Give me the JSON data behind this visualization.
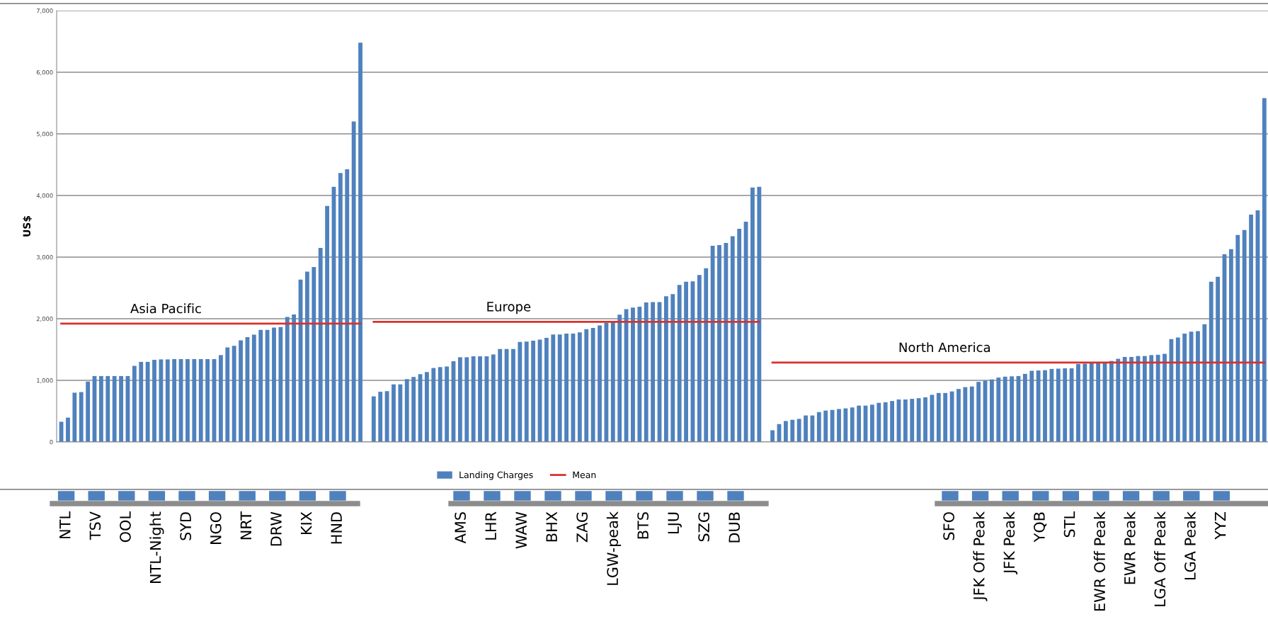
{
  "chart_data": {
    "type": "bar",
    "ylabel": "US$",
    "ylim": [
      0,
      7000
    ],
    "yticks": [
      0,
      {
        "value": 1000,
        "label": "1,000"
      },
      {
        "value": 2000,
        "label": "2,000"
      },
      {
        "value": 3000,
        "label": "3,000"
      },
      {
        "value": 4000,
        "label": "4,000"
      },
      {
        "value": 5000,
        "label": "5,000"
      },
      {
        "value": 6000,
        "label": "6,000"
      },
      {
        "value": 7000,
        "label": "7,000"
      }
    ],
    "grid": "y",
    "legend": "bottom",
    "categories": [
      null,
      null,
      null,
      null,
      null,
      null,
      null,
      null,
      null,
      null,
      null,
      null,
      null,
      null,
      null,
      null,
      null,
      null,
      null,
      null,
      null,
      null,
      null,
      null,
      null,
      null,
      null,
      null,
      null,
      null,
      null,
      null,
      null,
      null,
      null,
      null,
      null,
      null,
      null,
      null,
      null,
      null,
      null,
      null,
      null,
      null,
      null,
      null,
      null,
      null,
      null,
      null,
      null,
      null,
      null,
      null,
      null,
      null,
      null,
      null,
      null,
      null,
      null,
      null,
      null,
      null,
      null,
      null,
      null,
      null,
      null,
      null,
      null,
      null,
      null,
      null,
      null,
      null,
      null,
      null,
      null,
      null,
      null,
      null,
      null,
      null,
      null,
      null,
      null,
      null,
      null,
      null,
      null,
      null,
      null,
      null,
      null,
      null,
      null,
      null,
      null,
      null,
      null,
      null,
      null,
      null,
      null,
      null,
      null,
      null,
      null,
      null,
      null,
      null,
      null,
      null,
      null,
      null,
      null,
      null,
      null,
      null,
      null,
      null,
      null,
      null,
      null,
      null,
      null,
      null,
      null,
      null,
      null,
      null,
      null,
      null,
      null,
      null,
      null,
      null,
      null,
      null,
      null,
      null,
      null,
      null,
      null,
      null,
      null,
      null,
      null,
      null,
      null,
      null,
      null,
      null,
      null,
      null,
      null,
      null,
      null,
      null,
      null,
      null,
      null,
      null,
      null,
      null,
      null,
      null,
      null,
      null,
      null,
      null,
      null,
      null,
      null,
      null,
      null,
      null,
      null,
      null
    ],
    "series": [
      {
        "name": "Landing Charges",
        "color": "#4f81bd",
        "values": [
          328,
          395,
          800,
          810,
          980,
          1070,
          1070,
          1070,
          1070,
          1070,
          1070,
          1235,
          1300,
          1300,
          1333,
          1340,
          1340,
          1345,
          1345,
          1345,
          1345,
          1345,
          1345,
          1345,
          1410,
          1535,
          1560,
          1650,
          1700,
          1740,
          1820,
          1820,
          1855,
          1865,
          2030,
          2070,
          2635,
          2765,
          2840,
          3150,
          3830,
          4140,
          4365,
          4425,
          5200,
          6480,
          null,
          740,
          815,
          825,
          935,
          935,
          1020,
          1055,
          1100,
          1135,
          1200,
          1215,
          1225,
          1310,
          1375,
          1375,
          1390,
          1390,
          1390,
          1420,
          1510,
          1510,
          1510,
          1625,
          1630,
          1645,
          1660,
          1690,
          1745,
          1745,
          1760,
          1760,
          1780,
          1830,
          1850,
          1890,
          1935,
          1955,
          2065,
          2155,
          2180,
          2195,
          2265,
          2270,
          2270,
          2365,
          2400,
          2550,
          2600,
          2605,
          2710,
          2820,
          3185,
          3195,
          3230,
          3340,
          3460,
          3575,
          4130,
          4140,
          null,
          190,
          290,
          340,
          360,
          375,
          430,
          430,
          485,
          510,
          520,
          535,
          545,
          560,
          590,
          590,
          605,
          635,
          645,
          665,
          690,
          690,
          700,
          710,
          725,
          765,
          795,
          795,
          820,
          860,
          890,
          900,
          975,
          995,
          1015,
          1045,
          1060,
          1065,
          1070,
          1105,
          1155,
          1160,
          1165,
          1185,
          1190,
          1195,
          1195,
          1265,
          1270,
          1280,
          1300,
          1300,
          1315,
          1350,
          1380,
          1380,
          1395,
          1395,
          1410,
          1415,
          1430,
          1670,
          1695,
          1760,
          1790,
          1800,
          1910,
          2600,
          2680,
          3045,
          3130,
          3360,
          3440,
          3690,
          3760,
          5580
        ]
      },
      {
        "name": "Mean",
        "type": "line",
        "color": "#d9312b",
        "values": [
          1920,
          1920,
          1920,
          1920,
          1920,
          1920,
          1920,
          1920,
          1920,
          1920,
          1920,
          1920,
          1920,
          1920,
          1920,
          1920,
          1920,
          1920,
          1920,
          1920,
          1920,
          1920,
          1920,
          1920,
          1920,
          1920,
          1920,
          1920,
          1920,
          1920,
          1920,
          1920,
          1920,
          1920,
          1920,
          1920,
          1920,
          1920,
          1920,
          1920,
          1920,
          1920,
          1920,
          1920,
          1920,
          1920,
          null,
          1950,
          1950,
          1950,
          1950,
          1950,
          1950,
          1950,
          1950,
          1950,
          1950,
          1950,
          1950,
          1950,
          1950,
          1950,
          1950,
          1950,
          1950,
          1950,
          1950,
          1950,
          1950,
          1950,
          1950,
          1950,
          1950,
          1950,
          1950,
          1950,
          1950,
          1950,
          1950,
          1950,
          1950,
          1950,
          1950,
          1950,
          1950,
          1950,
          1950,
          1950,
          1950,
          1950,
          1950,
          1950,
          1950,
          1950,
          1950,
          1950,
          1950,
          1950,
          1950,
          1950,
          1950,
          1950,
          1950,
          1950,
          1950,
          1950,
          null,
          1290,
          1290,
          1290,
          1290,
          1290,
          1290,
          1290,
          1290,
          1290,
          1290,
          1290,
          1290,
          1290,
          1290,
          1290,
          1290,
          1290,
          1290,
          1290,
          1290,
          1290,
          1290,
          1290,
          1290,
          1290,
          1290,
          1290,
          1290,
          1290,
          1290,
          1290,
          1290,
          1290,
          1290,
          1290,
          1290,
          1290,
          1290,
          1290,
          1290,
          1290,
          1290,
          1290,
          1290,
          1290,
          1290,
          1290,
          1290,
          1290,
          1290,
          1290,
          1290,
          1290,
          1290,
          1290,
          1290,
          1290,
          1290,
          1290,
          1290,
          1290,
          1290,
          1290,
          1290,
          1290,
          1290,
          1290,
          1290,
          1290,
          1290,
          1290,
          1290,
          1290,
          1290,
          1290
        ]
      }
    ],
    "annotations": [
      "Asia Pacific",
      "Europe",
      "North America",
      "NTL",
      "TSV",
      "OOL",
      "NTL-Night",
      "SYD",
      "NGO",
      "NRT",
      "DRW",
      "KIX",
      "HND",
      "AMS",
      "LHR",
      "WAW",
      "BHX",
      "ZAG",
      "LGW-peak",
      "BTS",
      "LJU",
      "SZG",
      "DUB",
      "SFO",
      "JFK Off Peak",
      "JFK Peak",
      "YQB",
      "STL",
      "EWR Off Peak",
      "EWR Peak",
      "LGA Off Peak",
      "LGA Peak",
      "YYZ"
    ]
  }
}
